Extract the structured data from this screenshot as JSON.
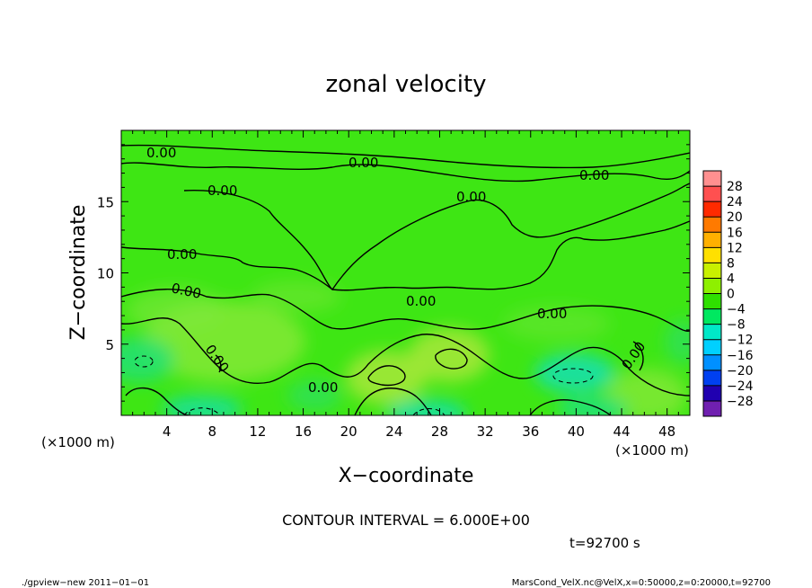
{
  "chart_data": {
    "type": "heatmap",
    "title": "zonal velocity",
    "xlabel": "X−coordinate",
    "ylabel": "Z−coordinate",
    "x_unit": "(×1000 m)",
    "y_unit": "(×1000 m)",
    "xlim": [
      0,
      50
    ],
    "ylim": [
      0,
      20
    ],
    "x_ticks": [
      4,
      8,
      12,
      16,
      20,
      24,
      28,
      32,
      36,
      40,
      44,
      48
    ],
    "y_ticks": [
      5,
      10,
      15
    ],
    "grid": false,
    "colorbar": {
      "levels": [
        "28",
        "24",
        "20",
        "16",
        "12",
        "8",
        "4",
        "0",
        "−4",
        "−8",
        "−12",
        "−16",
        "−20",
        "−24",
        "−28"
      ],
      "colors": [
        "#ff9090",
        "#ff5050",
        "#ff2a00",
        "#ff7a00",
        "#ffb000",
        "#ffe000",
        "#c8f000",
        "#8ef000",
        "#2fe000",
        "#00e860",
        "#00e8c8",
        "#00d0ff",
        "#0090ff",
        "#0040f0",
        "#2000b0",
        "#7020b0"
      ],
      "placement": "right"
    },
    "contour_label": "0.00",
    "contour_interval_text": "CONTOUR INTERVAL = 6.000E+00",
    "time_text": "t=92700 s"
  },
  "footer": {
    "left": "./gpview−new   2011−01−01",
    "right": "MarsCond_VelX.nc@VelX,x=0:50000,z=0:20000,t=92700"
  }
}
